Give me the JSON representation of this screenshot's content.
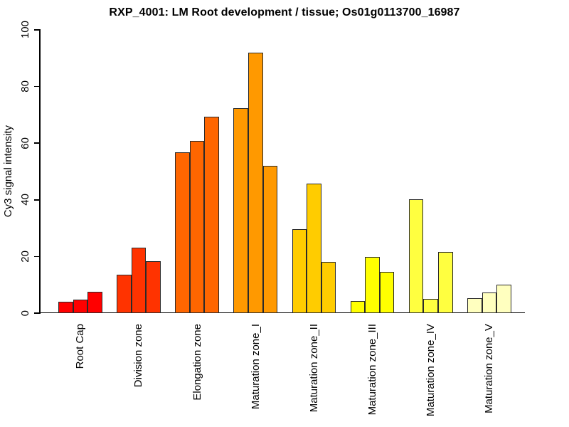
{
  "chart_data": {
    "type": "bar",
    "title": "RXP_4001: LM Root development / tissue; Os01g0113700_16987",
    "xlabel": "",
    "ylabel": "Cy3 signal intensity",
    "ylim": [
      0,
      100
    ],
    "yticks": [
      0,
      20,
      40,
      60,
      80,
      100
    ],
    "grid": false,
    "legend": false,
    "bars_per_group": 3,
    "bar_border_color": "#2A2A2A",
    "categories": [
      "Root Cap",
      "Division zone",
      "Elongation zone",
      "Maturation zone_I",
      "Maturation zone_II",
      "Maturation zone_III",
      "Maturation zone_IV",
      "Maturation zone_V"
    ],
    "groups": [
      {
        "label": "Root Cap",
        "color": "#FF0000",
        "values": [
          4.0,
          4.8,
          7.6
        ]
      },
      {
        "label": "Division zone",
        "color": "#FF3300",
        "values": [
          13.7,
          23.3,
          18.5
        ]
      },
      {
        "label": "Elongation zone",
        "color": "#FF6600",
        "values": [
          57.0,
          60.8,
          69.5
        ]
      },
      {
        "label": "Maturation zone_I",
        "color": "#FF9900",
        "values": [
          72.4,
          92.0,
          52.0
        ]
      },
      {
        "label": "Maturation zone_II",
        "color": "#FFCC00",
        "values": [
          29.7,
          45.8,
          18.3
        ]
      },
      {
        "label": "Maturation zone_III",
        "color": "#FFFF00",
        "values": [
          4.4,
          19.9,
          14.6
        ]
      },
      {
        "label": "Maturation zone_IV",
        "color": "#FFFF40",
        "values": [
          40.4,
          5.2,
          21.8
        ]
      },
      {
        "label": "Maturation zone_V",
        "color": "#FFFFBF",
        "values": [
          5.4,
          7.4,
          10.2
        ]
      }
    ]
  }
}
